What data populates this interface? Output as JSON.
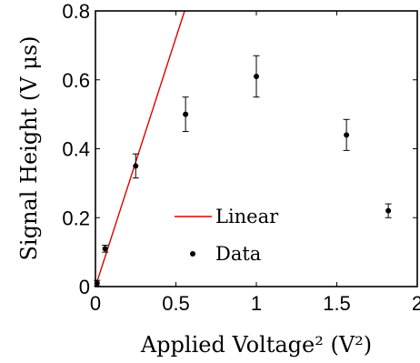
{
  "chart_data": {
    "type": "scatter",
    "title": "",
    "xlabel": "Applied Voltage² (V²)",
    "ylabel": "Signal Height (V μs)",
    "xlim": [
      0,
      2
    ],
    "ylim": [
      0,
      0.8
    ],
    "xticks": [
      "0",
      "0.5",
      "1",
      "1.5",
      "2"
    ],
    "yticks": [
      "0",
      "0.2",
      "0.4",
      "0.6",
      "0.8"
    ],
    "grid": false,
    "legend_position": "lower-center",
    "colors": {
      "linear": "#e00000",
      "data": "#000000"
    },
    "series": [
      {
        "name": "Linear",
        "kind": "line",
        "x": [
          0,
          0.554
        ],
        "y": [
          0,
          0.8
        ]
      },
      {
        "name": "Data",
        "kind": "scatter_errorbar",
        "x": [
          0.01,
          0.06,
          0.25,
          0.56,
          1.0,
          1.56,
          1.82
        ],
        "y": [
          0.01,
          0.11,
          0.35,
          0.5,
          0.61,
          0.44,
          0.22
        ],
        "err": [
          0.008,
          0.01,
          0.035,
          0.05,
          0.06,
          0.045,
          0.02
        ]
      }
    ]
  }
}
